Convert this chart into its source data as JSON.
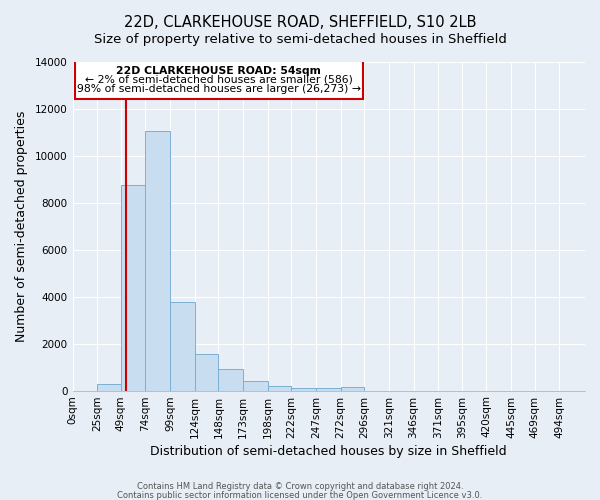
{
  "title": "22D, CLARKEHOUSE ROAD, SHEFFIELD, S10 2LB",
  "subtitle": "Size of property relative to semi-detached houses in Sheffield",
  "xlabel": "Distribution of semi-detached houses by size in Sheffield",
  "ylabel": "Number of semi-detached properties",
  "bin_edges": [
    0,
    25,
    49,
    74,
    99,
    124,
    148,
    173,
    198,
    222,
    247,
    272,
    296,
    321,
    346,
    371,
    395,
    420,
    445,
    469,
    494,
    520
  ],
  "bin_labels": [
    "0sqm",
    "25sqm",
    "49sqm",
    "74sqm",
    "99sqm",
    "124sqm",
    "148sqm",
    "173sqm",
    "198sqm",
    "222sqm",
    "247sqm",
    "272sqm",
    "296sqm",
    "321sqm",
    "346sqm",
    "371sqm",
    "395sqm",
    "420sqm",
    "445sqm",
    "469sqm",
    "494sqm"
  ],
  "bar_heights": [
    0,
    300,
    8750,
    11050,
    3750,
    1550,
    900,
    400,
    200,
    130,
    100,
    150,
    0,
    0,
    0,
    0,
    0,
    0,
    0,
    0,
    0
  ],
  "bar_color": "#c9ddf0",
  "bar_edgecolor": "#7ab0d4",
  "property_size": 54,
  "vline_color": "#cc0000",
  "ann_line1": "22D CLARKEHOUSE ROAD: 54sqm",
  "ann_line2": "← 2% of semi-detached houses are smaller (586)",
  "ann_line3": "98% of semi-detached houses are larger (26,273) →",
  "annotation_box_color": "#cc0000",
  "ylim": [
    0,
    14000
  ],
  "yticks": [
    0,
    2000,
    4000,
    6000,
    8000,
    10000,
    12000,
    14000
  ],
  "title_fontsize": 10.5,
  "subtitle_fontsize": 9.5,
  "axis_label_fontsize": 9,
  "tick_fontsize": 7.5,
  "bg_color": "#e8eef5",
  "plot_bg_color": "#e8eef5",
  "footer_text1": "Contains HM Land Registry data © Crown copyright and database right 2024.",
  "footer_text2": "Contains public sector information licensed under the Open Government Licence v3.0."
}
